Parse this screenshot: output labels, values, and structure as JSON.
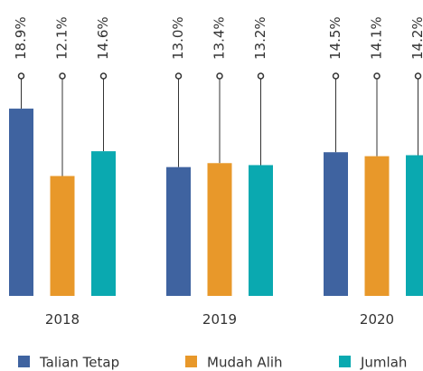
{
  "chart_data": {
    "type": "bar",
    "categories": [
      "2018",
      "2019",
      "2020"
    ],
    "series": [
      {
        "name": "Talian Tetap",
        "color": "#3f63a0",
        "values": [
          18.9,
          13.0,
          14.5
        ],
        "value_labels": [
          "18.9%",
          "13.0%",
          "14.5%"
        ]
      },
      {
        "name": "Mudah Alih",
        "color": "#e8982a",
        "values": [
          12.1,
          13.4,
          14.1
        ],
        "value_labels": [
          "12.1%",
          "13.4%",
          "14.1%"
        ]
      },
      {
        "name": "Jumlah",
        "color": "#0aa9b0",
        "values": [
          14.6,
          13.2,
          14.2
        ],
        "value_labels": [
          "14.6%",
          "13.2%",
          "14.2%"
        ]
      }
    ]
  }
}
